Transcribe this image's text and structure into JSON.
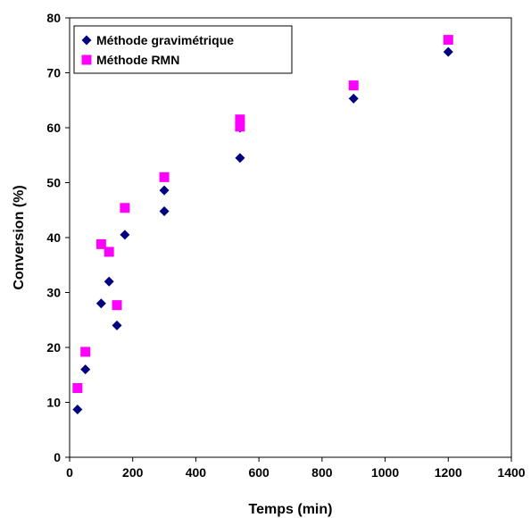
{
  "chart_data": {
    "type": "scatter",
    "title": "",
    "xlabel": "Temps (min)",
    "ylabel": "Conversion (%)",
    "xlim": [
      0,
      1400
    ],
    "ylim": [
      0,
      80
    ],
    "xticks": [
      0,
      200,
      400,
      600,
      800,
      1000,
      1200,
      1400
    ],
    "yticks": [
      0,
      10,
      20,
      30,
      40,
      50,
      60,
      70,
      80
    ],
    "grid": false,
    "legend_position": "top-left",
    "series": [
      {
        "name": "Méthode gravimétrique",
        "marker": "diamond",
        "color": "#000080",
        "points": [
          {
            "x": 25,
            "y": 8.7
          },
          {
            "x": 50,
            "y": 16
          },
          {
            "x": 100,
            "y": 28
          },
          {
            "x": 125,
            "y": 32
          },
          {
            "x": 150,
            "y": 24
          },
          {
            "x": 175,
            "y": 40.5
          },
          {
            "x": 300,
            "y": 48.6
          },
          {
            "x": 300,
            "y": 44.8
          },
          {
            "x": 540,
            "y": 60
          },
          {
            "x": 540,
            "y": 54.5
          },
          {
            "x": 900,
            "y": 65.3
          },
          {
            "x": 1200,
            "y": 73.8
          }
        ]
      },
      {
        "name": "Méthode RMN",
        "marker": "square",
        "color": "#ff00ff",
        "points": [
          {
            "x": 25,
            "y": 12.6
          },
          {
            "x": 50,
            "y": 19.2
          },
          {
            "x": 100,
            "y": 38.8
          },
          {
            "x": 125,
            "y": 37.4
          },
          {
            "x": 150,
            "y": 27.7
          },
          {
            "x": 175,
            "y": 45.4
          },
          {
            "x": 300,
            "y": 51
          },
          {
            "x": 540,
            "y": 61.5
          },
          {
            "x": 540,
            "y": 60.2
          },
          {
            "x": 900,
            "y": 67.7
          },
          {
            "x": 1200,
            "y": 76
          }
        ]
      }
    ]
  }
}
